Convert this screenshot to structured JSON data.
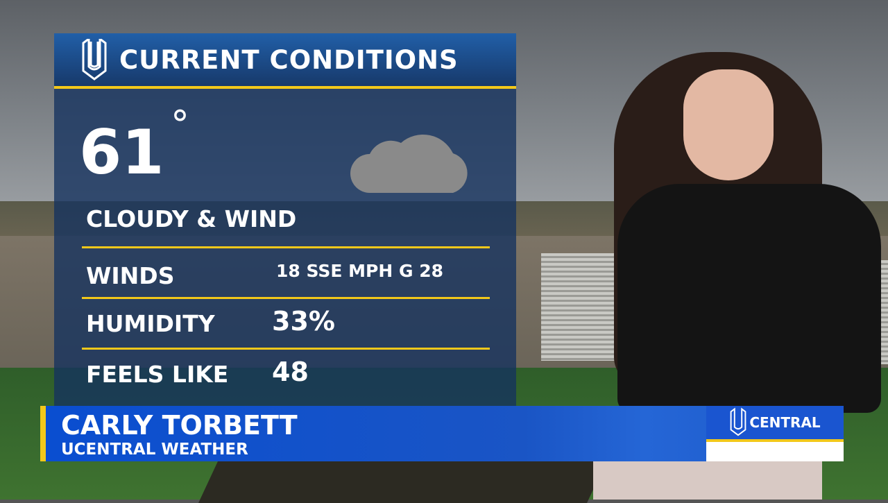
{
  "panel": {
    "title": "CURRENT CONDITIONS",
    "temperature": "61",
    "degree_symbol": "°",
    "condition": "CLOUDY & WIND",
    "condition_icon": "cloud-icon",
    "rows": [
      {
        "label": "WINDS",
        "value": "18 SSE MPH G 28"
      },
      {
        "label": "HUMIDITY",
        "value": "33%"
      },
      {
        "label": "FEELS LIKE",
        "value": "48"
      }
    ]
  },
  "lower_third": {
    "name": "CARLY TORBETT",
    "subtitle": "UCENTRAL WEATHER",
    "brand": "CENTRAL"
  },
  "colors": {
    "accent_yellow": "#f2c81a",
    "panel_blue": "#17396a",
    "lower_third_blue": "#0a4ed0"
  }
}
